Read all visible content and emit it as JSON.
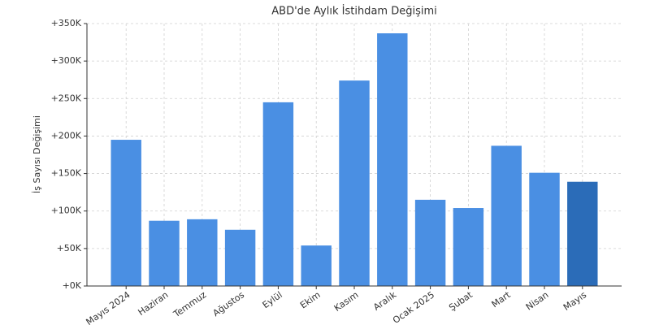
{
  "chart_data": {
    "type": "bar",
    "title": "ABD'de Aylık İstihdam Değişimi",
    "y_label": "İş Sayısı Değişimi",
    "categories": [
      "Mayıs 2024",
      "Haziran",
      "Temmuz",
      "Ağustos",
      "Eylül",
      "Ekim",
      "Kasım",
      "Aralık",
      "Ocak 2025",
      "Şubat",
      "Mart",
      "Nisan",
      "Mayıs"
    ],
    "values": [
      195000,
      87000,
      89000,
      75000,
      245000,
      54000,
      274000,
      337000,
      115000,
      104000,
      187000,
      151000,
      139000
    ],
    "colors": [
      "#4a8fe3",
      "#4a8fe3",
      "#4a8fe3",
      "#4a8fe3",
      "#4a8fe3",
      "#4a8fe3",
      "#4a8fe3",
      "#4a8fe3",
      "#4a8fe3",
      "#4a8fe3",
      "#4a8fe3",
      "#4a8fe3",
      "#2b6cb8"
    ],
    "ylim": [
      0,
      350000
    ],
    "yticks": [
      {
        "value": 0,
        "label": "+0K"
      },
      {
        "value": 50000,
        "label": "+50K"
      },
      {
        "value": 100000,
        "label": "+100K"
      },
      {
        "value": 150000,
        "label": "+150K"
      },
      {
        "value": 200000,
        "label": "+200K"
      },
      {
        "value": 250000,
        "label": "+250K"
      },
      {
        "value": 300000,
        "label": "+300K"
      },
      {
        "value": 350000,
        "label": "+350K"
      }
    ],
    "grid": true
  }
}
